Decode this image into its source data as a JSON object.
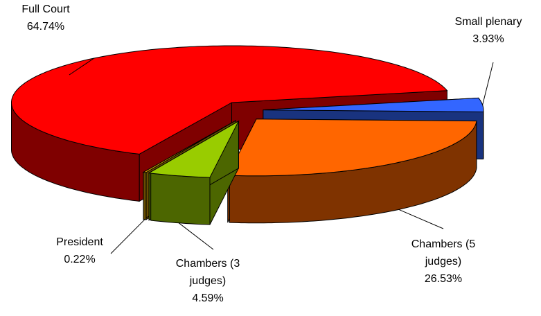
{
  "chart_data": {
    "type": "pie3d",
    "categories": [
      "Full Court",
      "Small plenary",
      "Chambers (5 judges)",
      "Chambers (3 judges)",
      "President"
    ],
    "values": [
      64.74,
      3.93,
      26.53,
      4.59,
      0.22
    ],
    "value_labels": [
      "64.74%",
      "3.93%",
      "26.53%",
      "4.59%",
      "0.22%"
    ],
    "colors": [
      "#ff0000",
      "#3366ff",
      "#ff6600",
      "#99cc00",
      "#cc9900"
    ],
    "exploded": true
  }
}
